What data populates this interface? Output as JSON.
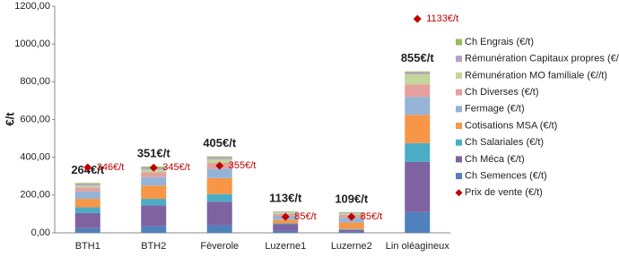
{
  "chart_data": {
    "type": "stacked_bar",
    "y_label": "€/t",
    "categories": [
      "BTH1",
      "BTH2",
      "Fèverole",
      "Luzerne1",
      "Luzerne2",
      "Lin oléagineux"
    ],
    "series": [
      {
        "name": "Ch Semences (€/t)",
        "color": "#4f81bd",
        "values": [
          25,
          35,
          40,
          10,
          5,
          110
        ]
      },
      {
        "name": "Ch Méca (€/t)",
        "color": "#7f62a0",
        "values": [
          80,
          110,
          125,
          35,
          10,
          265
        ]
      },
      {
        "name": "Ch Salariales (€/t)",
        "color": "#4bacc6",
        "values": [
          30,
          35,
          40,
          5,
          5,
          100
        ]
      },
      {
        "name": "Cotisations MSA (€/t)",
        "color": "#f79646",
        "values": [
          45,
          70,
          85,
          20,
          35,
          150
        ]
      },
      {
        "name": "Fermage (€/t)",
        "color": "#95b3d7",
        "values": [
          40,
          45,
          50,
          20,
          25,
          95
        ]
      },
      {
        "name": "Ch Diverses (€/t)",
        "color": "#e6a09e",
        "values": [
          20,
          25,
          30,
          10,
          15,
          65
        ]
      },
      {
        "name": "Rémunération MO familiale (€//t)",
        "color": "#c3d69b",
        "values": [
          10,
          15,
          20,
          8,
          8,
          55
        ]
      },
      {
        "name": "Rémunération Capitaux propres (€/t)",
        "color": "#b3a2c7",
        "values": [
          10,
          10,
          10,
          3,
          4,
          10
        ]
      },
      {
        "name": "Ch Engrais (€/t)",
        "color": "#9bbb59",
        "values": [
          4,
          6,
          5,
          2,
          2,
          5
        ]
      }
    ],
    "price": {
      "name": "Prix de vente (€/t)",
      "color": "#c00000",
      "values": [
        346,
        345,
        355,
        85,
        85,
        1133
      ],
      "value_labels": [
        "346€/t",
        "345€/t",
        "355€/t",
        "85€/t",
        "85€/t",
        "1133€/t"
      ]
    },
    "totals": {
      "values": [
        264,
        351,
        405,
        113,
        109,
        855
      ],
      "value_labels": [
        "264€/t",
        "351€/t",
        "405€/t",
        "113€/t",
        "109€/t",
        "855€/t"
      ]
    },
    "ylim": [
      0,
      1200
    ],
    "yticks": [
      {
        "value": 0,
        "label": "0,00"
      },
      {
        "value": 200,
        "label": "200,00"
      },
      {
        "value": 400,
        "label": "400,00"
      },
      {
        "value": 600,
        "label": "600,00"
      },
      {
        "value": 800,
        "label": "800,00"
      },
      {
        "value": 1000,
        "label": "1000,00"
      },
      {
        "value": 1200,
        "label": "1200,00"
      }
    ],
    "grid": false
  }
}
